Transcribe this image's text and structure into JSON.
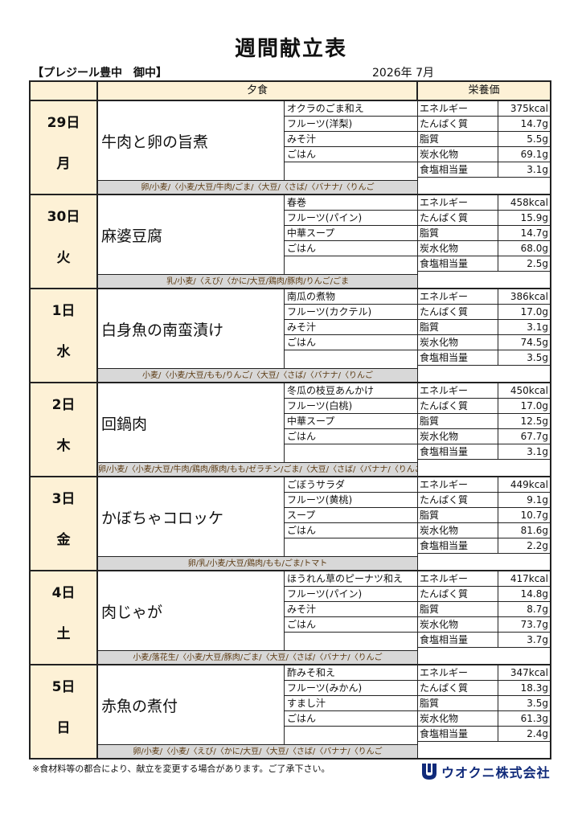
{
  "title": "週間献立表",
  "facility": "【プレジール豊中　御中】",
  "year_month": "2026年 7月",
  "headers": {
    "dinner": "夕食",
    "nutrition": "栄養価"
  },
  "days": [
    {
      "date": "29日",
      "weekday": "月",
      "main": "牛肉と卵の旨煮",
      "sides": [
        "オクラのごま和え",
        "フルーツ(洋梨)",
        "みそ汁",
        "ごはん"
      ],
      "allergens": "卵/小麦/〈小麦/大豆/牛肉/ごま/〈大豆/〈さば/〈バナナ/〈りんご",
      "nutrition": [
        {
          "name": "エネルギー",
          "value": "375kcal"
        },
        {
          "name": "たんぱく質",
          "value": "14.7g"
        },
        {
          "name": "脂質",
          "value": "5.5g"
        },
        {
          "name": "炭水化物",
          "value": "69.1g"
        },
        {
          "name": "食塩相当量",
          "value": "3.1g"
        }
      ]
    },
    {
      "date": "30日",
      "weekday": "火",
      "main": "麻婆豆腐",
      "sides": [
        "春巻",
        "フルーツ(パイン)",
        "中華スープ",
        "ごはん"
      ],
      "allergens": "乳/小麦/〈えび/〈かに/大豆/鶏肉/豚肉/りんご/ごま",
      "nutrition": [
        {
          "name": "エネルギー",
          "value": "458kcal"
        },
        {
          "name": "たんぱく質",
          "value": "15.9g"
        },
        {
          "name": "脂質",
          "value": "14.7g"
        },
        {
          "name": "炭水化物",
          "value": "68.0g"
        },
        {
          "name": "食塩相当量",
          "value": "2.5g"
        }
      ]
    },
    {
      "date": "1日",
      "weekday": "水",
      "main": "白身魚の南蛮漬け",
      "sides": [
        "南瓜の煮物",
        "フルーツ(カクテル)",
        "みそ汁",
        "ごはん"
      ],
      "allergens": "小麦/〈小麦/大豆/もも/りんご/〈大豆/〈さば/〈バナナ/〈りんご",
      "nutrition": [
        {
          "name": "エネルギー",
          "value": "386kcal"
        },
        {
          "name": "たんぱく質",
          "value": "17.0g"
        },
        {
          "name": "脂質",
          "value": "3.1g"
        },
        {
          "name": "炭水化物",
          "value": "74.5g"
        },
        {
          "name": "食塩相当量",
          "value": "3.5g"
        }
      ]
    },
    {
      "date": "2日",
      "weekday": "木",
      "main": "回鍋肉",
      "sides": [
        "冬瓜の枝豆あんかけ",
        "フルーツ(白桃)",
        "中華スープ",
        "ごはん"
      ],
      "allergens": "卵/小麦/〈小麦/大豆/牛肉/鶏肉/豚肉/もも/ゼラチン/ごま/〈大豆/〈さば/〈バナナ/〈りんご",
      "nutrition": [
        {
          "name": "エネルギー",
          "value": "450kcal"
        },
        {
          "name": "たんぱく質",
          "value": "17.0g"
        },
        {
          "name": "脂質",
          "value": "12.5g"
        },
        {
          "name": "炭水化物",
          "value": "67.7g"
        },
        {
          "name": "食塩相当量",
          "value": "3.1g"
        }
      ]
    },
    {
      "date": "3日",
      "weekday": "金",
      "main": "かぼちゃコロッケ",
      "sides": [
        "ごぼうサラダ",
        "フルーツ(黄桃)",
        "スープ",
        "ごはん"
      ],
      "allergens": "卵/乳/小麦/大豆/鶏肉/もも/ごま/トマト",
      "nutrition": [
        {
          "name": "エネルギー",
          "value": "449kcal"
        },
        {
          "name": "たんぱく質",
          "value": "9.1g"
        },
        {
          "name": "脂質",
          "value": "10.7g"
        },
        {
          "name": "炭水化物",
          "value": "81.6g"
        },
        {
          "name": "食塩相当量",
          "value": "2.2g"
        }
      ]
    },
    {
      "date": "4日",
      "weekday": "土",
      "main": "肉じゃが",
      "sides": [
        "ほうれん草のピーナツ和え",
        "フルーツ(パイン)",
        "みそ汁",
        "ごはん"
      ],
      "allergens": "小麦/落花生/〈小麦/大豆/豚肉/ごま/〈大豆/〈さば/〈バナナ/〈りんご",
      "nutrition": [
        {
          "name": "エネルギー",
          "value": "417kcal"
        },
        {
          "name": "たんぱく質",
          "value": "14.8g"
        },
        {
          "name": "脂質",
          "value": "8.7g"
        },
        {
          "name": "炭水化物",
          "value": "73.7g"
        },
        {
          "name": "食塩相当量",
          "value": "3.7g"
        }
      ]
    },
    {
      "date": "5日",
      "weekday": "日",
      "main": "赤魚の煮付",
      "sides": [
        "酢みそ和え",
        "フルーツ(みかん)",
        "すまし汁",
        "ごはん"
      ],
      "allergens": "卵/小麦/〈小麦/〈えび/〈かに/大豆/〈大豆/〈さば/〈バナナ/〈りんご",
      "nutrition": [
        {
          "name": "エネルギー",
          "value": "347kcal"
        },
        {
          "name": "たんぱく質",
          "value": "18.3g"
        },
        {
          "name": "脂質",
          "value": "3.5g"
        },
        {
          "name": "炭水化物",
          "value": "61.3g"
        },
        {
          "name": "食塩相当量",
          "value": "2.4g"
        }
      ]
    }
  ],
  "footer_note": "※食材料等の都合により、献立を変更する場合があります。ご了承下さい。",
  "company": "ウオクニ株式会社",
  "colors": {
    "header_bg": "#fdf1d6",
    "allergen_bg": "#d8d8d8",
    "logo_color": "#102a7a"
  }
}
